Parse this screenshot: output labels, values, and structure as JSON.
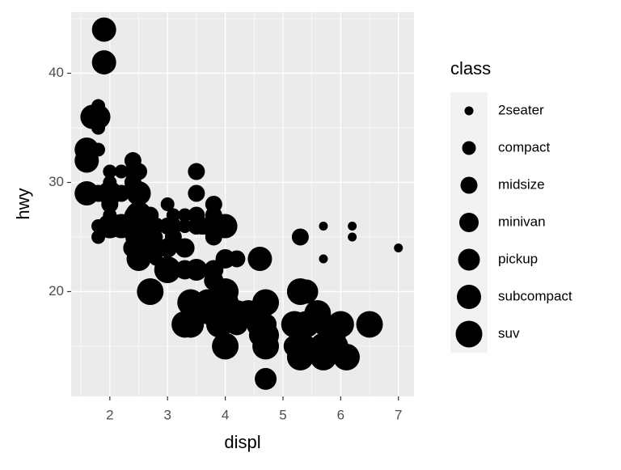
{
  "chart_data": {
    "type": "scatter",
    "x_label": "displ",
    "y_label": "hwy",
    "legend_title": "class",
    "xlim": [
      1.33,
      7.27
    ],
    "xticks": [
      2,
      3,
      4,
      5,
      6,
      7
    ],
    "ylim": [
      10.4,
      45.6
    ],
    "yticks": [
      20,
      30,
      40
    ],
    "grid": true,
    "legend_position": "right",
    "series": [
      {
        "name": "2seater",
        "color": "#000000",
        "x": [
          5.7,
          5.7,
          6.2,
          6.2,
          7.0
        ],
        "values": [
          26,
          23,
          26,
          25,
          24
        ]
      },
      {
        "name": "compact",
        "color": "#000000",
        "x": [
          1.8,
          1.8,
          2.0,
          2.0,
          2.8,
          3.1,
          1.8,
          1.8,
          2.0,
          2.0,
          2.8,
          3.1,
          1.9,
          2.0,
          2.0,
          2.5,
          2.8,
          2.8,
          1.8,
          1.8,
          1.8,
          2.2,
          2.4,
          3.0,
          3.0,
          3.3,
          3.3,
          2.0,
          2.0,
          2.8
        ],
        "values": [
          29,
          29,
          31,
          30,
          26,
          27,
          26,
          25,
          28,
          27,
          25,
          25,
          44,
          29,
          26,
          29,
          24,
          23,
          35,
          37,
          33,
          31,
          31,
          26,
          28,
          27,
          26,
          29,
          28,
          24
        ]
      },
      {
        "name": "midsize",
        "color": "#000000",
        "x": [
          2.8,
          3.1,
          4.2,
          2.4,
          2.4,
          3.1,
          3.5,
          3.6,
          3.1,
          3.8,
          3.8,
          3.8,
          5.3,
          2.4,
          2.5,
          3.5,
          3.0,
          3.5,
          2.2,
          2.2,
          2.4,
          3.0,
          3.5,
          2.4,
          2.5,
          2.7,
          1.8,
          2.0,
          2.8,
          3.6
        ],
        "values": [
          24,
          25,
          23,
          27,
          30,
          26,
          29,
          26,
          26,
          27,
          25,
          28,
          25,
          32,
          31,
          27,
          26,
          26,
          26,
          29,
          31,
          26,
          31,
          30,
          26,
          27,
          29,
          28,
          26,
          26
        ]
      },
      {
        "name": "minivan",
        "color": "#000000",
        "x": [
          2.4,
          3.0,
          3.3,
          3.3,
          3.8,
          3.8,
          4.0
        ],
        "values": [
          24,
          24,
          22,
          24,
          22,
          21,
          23
        ]
      },
      {
        "name": "pickup",
        "color": "#000000",
        "x": [
          3.7,
          3.7,
          3.9,
          4.7,
          4.7,
          5.2,
          5.2,
          5.9,
          5.7,
          5.9,
          4.7,
          4.2,
          4.6,
          5.4,
          5.3,
          6.0,
          2.7,
          3.5,
          3.7,
          2.7,
          3.4,
          4.0,
          4.7
        ],
        "values": [
          19,
          18,
          17,
          17,
          15,
          15,
          17,
          16,
          17,
          15,
          12,
          17,
          16,
          15,
          17,
          17,
          20,
          22,
          19,
          20,
          19,
          20,
          19
        ]
      },
      {
        "name": "subcompact",
        "color": "#000000",
        "x": [
          1.6,
          1.6,
          1.7,
          1.8,
          2.0,
          1.6,
          1.9,
          1.9,
          2.0,
          2.0,
          2.5,
          3.8,
          4.0,
          4.6,
          5.4,
          2.0,
          2.7,
          2.2,
          2.5,
          2.5
        ],
        "values": [
          33,
          32,
          36,
          36,
          29,
          29,
          44,
          41,
          29,
          26,
          29,
          26,
          26,
          23,
          20,
          26,
          24,
          26,
          26,
          23
        ]
      },
      {
        "name": "suv",
        "color": "#000000",
        "x": [
          5.3,
          5.7,
          6.0,
          6.5,
          4.7,
          5.7,
          6.1,
          4.0,
          4.6,
          5.4,
          4.7,
          5.2,
          4.2,
          4.4,
          3.3,
          5.6,
          2.5,
          2.5,
          2.4,
          2.7,
          3.4,
          4.0,
          3.0,
          3.7,
          3.9,
          5.9,
          5.3,
          4.0,
          4.7,
          5.3,
          3.4
        ],
        "values": [
          20,
          15,
          17,
          17,
          19,
          14,
          14,
          19,
          17,
          17,
          15,
          17,
          18,
          18,
          17,
          18,
          25,
          27,
          26,
          20,
          17,
          15,
          22,
          19,
          17,
          15,
          14,
          20,
          16,
          15,
          19
        ]
      }
    ]
  }
}
